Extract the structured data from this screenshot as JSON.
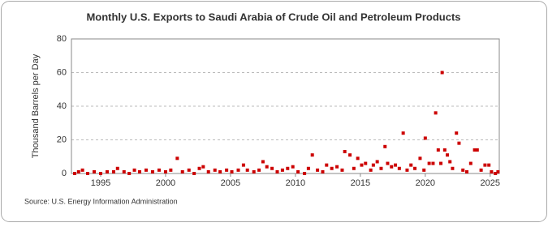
{
  "chart_data": {
    "type": "scatter",
    "title": "Monthly U.S. Exports to Saudi Arabia of Crude Oil and Petroleum Products",
    "y_label": "Thousand Barrels per Day",
    "source": "Source: U.S. Energy Information Administration",
    "color": "#cc0000",
    "grid": true,
    "xlim": [
      1992.75,
      2025.7
    ],
    "xticks": [
      1995,
      2000,
      2005,
      2010,
      2015,
      2020,
      2025
    ],
    "ylim": [
      0,
      80
    ],
    "yticks": [
      0,
      20,
      40,
      60,
      80
    ],
    "x": [
      1993.0,
      1993.3,
      1993.6,
      1994.0,
      1994.5,
      1995.0,
      1995.5,
      1996.0,
      1996.3,
      1996.8,
      1997.2,
      1997.6,
      1998.0,
      1998.5,
      1999.0,
      1999.5,
      2000.0,
      2000.4,
      2000.9,
      2001.3,
      2001.8,
      2002.2,
      2002.6,
      2002.9,
      2003.3,
      2003.8,
      2004.2,
      2004.7,
      2005.1,
      2005.6,
      2006.0,
      2006.3,
      2006.8,
      2007.2,
      2007.5,
      2007.8,
      2008.2,
      2008.6,
      2009.0,
      2009.4,
      2009.8,
      2010.2,
      2010.7,
      2011.0,
      2011.3,
      2011.7,
      2012.1,
      2012.4,
      2012.8,
      2013.2,
      2013.6,
      2013.8,
      2014.2,
      2014.5,
      2014.8,
      2015.1,
      2015.4,
      2015.8,
      2016.0,
      2016.3,
      2016.6,
      2016.9,
      2017.1,
      2017.4,
      2017.7,
      2018.0,
      2018.3,
      2018.6,
      2018.9,
      2019.2,
      2019.6,
      2019.9,
      2020.0,
      2020.3,
      2020.6,
      2020.8,
      2021.0,
      2021.2,
      2021.3,
      2021.5,
      2021.7,
      2021.9,
      2022.1,
      2022.4,
      2022.6,
      2022.9,
      2023.2,
      2023.5,
      2023.8,
      2024.0,
      2024.3,
      2024.6,
      2024.9,
      2025.1,
      2025.4,
      2025.6
    ],
    "values": [
      0,
      1,
      2,
      0,
      1,
      0,
      1,
      1,
      3,
      1,
      0,
      2,
      1,
      2,
      1,
      2,
      1,
      2,
      9,
      1,
      2,
      0,
      3,
      4,
      1,
      2,
      1,
      2,
      1,
      2,
      5,
      2,
      1,
      2,
      7,
      4,
      3,
      1,
      2,
      3,
      4,
      1,
      0,
      3,
      11,
      2,
      1,
      5,
      3,
      4,
      2,
      13,
      11,
      3,
      9,
      5,
      6,
      2,
      5,
      7,
      3,
      16,
      6,
      4,
      5,
      3,
      24,
      2,
      5,
      3,
      9,
      2,
      21,
      6,
      6,
      36,
      14,
      6,
      60,
      14,
      11,
      7,
      3,
      24,
      18,
      2,
      1,
      6,
      14,
      14,
      2,
      5,
      5,
      1,
      0,
      1
    ]
  }
}
